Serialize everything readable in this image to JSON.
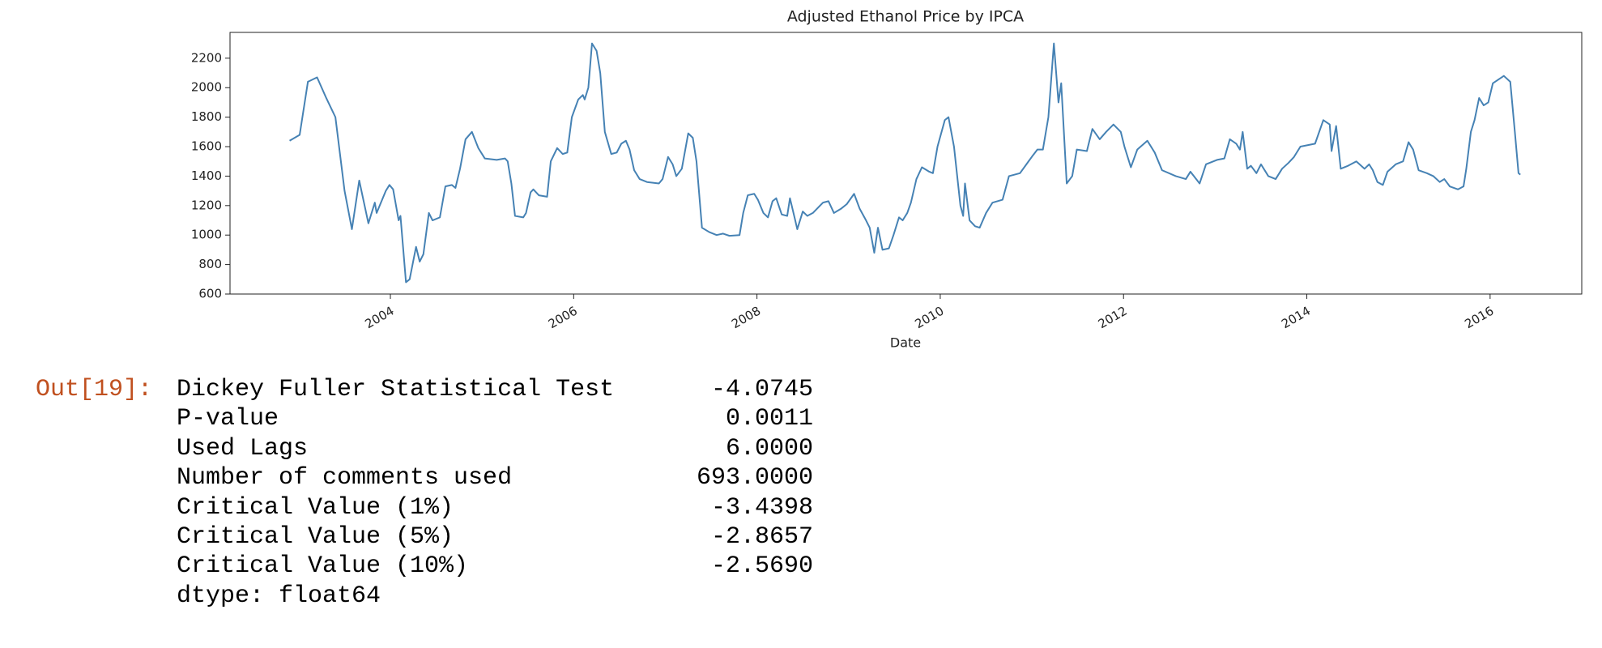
{
  "chart_data": {
    "type": "line",
    "title": "Adjusted Ethanol Price by IPCA",
    "xlabel": "Date",
    "color": "#4682b4",
    "x": [
      2002.9,
      2003.01,
      2003.1,
      2003.2,
      2003.3,
      2003.4,
      2003.5,
      2003.58,
      2003.66,
      2003.76,
      2003.83,
      2003.85,
      2003.95,
      2003.99,
      2004.03,
      2004.09,
      2004.11,
      2004.17,
      2004.21,
      2004.28,
      2004.32,
      2004.36,
      2004.42,
      2004.46,
      2004.54,
      2004.6,
      2004.67,
      2004.71,
      2004.76,
      2004.82,
      2004.89,
      2004.96,
      2005.03,
      2005.16,
      2005.25,
      2005.28,
      2005.32,
      2005.36,
      2005.45,
      2005.48,
      2005.53,
      2005.56,
      2005.62,
      2005.71,
      2005.75,
      2005.82,
      2005.88,
      2005.93,
      2005.98,
      2006.05,
      2006.1,
      2006.12,
      2006.16,
      2006.2,
      2006.25,
      2006.29,
      2006.34,
      2006.41,
      2006.47,
      2006.52,
      2006.57,
      2006.61,
      2006.66,
      2006.72,
      2006.8,
      2006.93,
      2006.97,
      2007.03,
      2007.08,
      2007.12,
      2007.18,
      2007.25,
      2007.3,
      2007.34,
      2007.4,
      2007.48,
      2007.56,
      2007.63,
      2007.7,
      2007.81,
      2007.85,
      2007.9,
      2007.97,
      2008.01,
      2008.07,
      2008.12,
      2008.17,
      2008.21,
      2008.27,
      2008.33,
      2008.36,
      2008.41,
      2008.44,
      2008.5,
      2008.55,
      2008.61,
      2008.72,
      2008.78,
      2008.84,
      2008.92,
      2008.98,
      2009.06,
      2009.12,
      2009.19,
      2009.23,
      2009.28,
      2009.32,
      2009.37,
      2009.44,
      2009.49,
      2009.55,
      2009.59,
      2009.64,
      2009.68,
      2009.74,
      2009.8,
      2009.88,
      2009.92,
      2009.97,
      2010.05,
      2010.09,
      2010.15,
      2010.22,
      2010.25,
      2010.27,
      2010.32,
      2010.38,
      2010.43,
      2010.5,
      2010.57,
      2010.68,
      2010.75,
      2010.87,
      2010.94,
      2011.01,
      2011.06,
      2011.12,
      2011.18,
      2011.24,
      2011.29,
      2011.32,
      2011.38,
      2011.44,
      2011.49,
      2011.6,
      2011.66,
      2011.74,
      2011.81,
      2011.89,
      2011.97,
      2012.01,
      2012.08,
      2012.15,
      2012.26,
      2012.34,
      2012.42,
      2012.57,
      2012.68,
      2012.73,
      2012.83,
      2012.9,
      2013.02,
      2013.1,
      2013.16,
      2013.23,
      2013.27,
      2013.3,
      2013.35,
      2013.39,
      2013.45,
      2013.5,
      2013.58,
      2013.66,
      2013.73,
      2013.8,
      2013.86,
      2013.93,
      2014.09,
      2014.18,
      2014.25,
      2014.27,
      2014.32,
      2014.37,
      2014.45,
      2014.54,
      2014.63,
      2014.68,
      2014.72,
      2014.77,
      2014.83,
      2014.88,
      2014.97,
      2015.05,
      2015.11,
      2015.16,
      2015.22,
      2015.31,
      2015.38,
      2015.45,
      2015.5,
      2015.56,
      2015.65,
      2015.71,
      2015.74,
      2015.79,
      2015.83,
      2015.88,
      2015.93,
      2015.98,
      2016.03,
      2016.15,
      2016.22,
      2016.27,
      2016.31,
      2016.33
    ],
    "values": [
      1640,
      1680,
      2040,
      2070,
      1930,
      1800,
      1300,
      1040,
      1370,
      1080,
      1220,
      1150,
      1300,
      1340,
      1310,
      1100,
      1130,
      680,
      700,
      920,
      820,
      870,
      1150,
      1100,
      1120,
      1330,
      1340,
      1320,
      1450,
      1650,
      1700,
      1590,
      1520,
      1510,
      1520,
      1500,
      1350,
      1130,
      1120,
      1150,
      1290,
      1310,
      1270,
      1260,
      1500,
      1590,
      1550,
      1560,
      1800,
      1920,
      1950,
      1920,
      2000,
      2300,
      2250,
      2100,
      1700,
      1550,
      1560,
      1620,
      1640,
      1580,
      1440,
      1380,
      1360,
      1350,
      1380,
      1530,
      1480,
      1400,
      1450,
      1690,
      1660,
      1500,
      1050,
      1020,
      1000,
      1010,
      995,
      1000,
      1150,
      1270,
      1280,
      1240,
      1150,
      1120,
      1230,
      1250,
      1140,
      1130,
      1250,
      1120,
      1040,
      1160,
      1130,
      1150,
      1220,
      1230,
      1150,
      1180,
      1210,
      1280,
      1180,
      1100,
      1050,
      880,
      1050,
      900,
      910,
      1000,
      1120,
      1100,
      1150,
      1220,
      1380,
      1460,
      1430,
      1420,
      1600,
      1780,
      1800,
      1600,
      1200,
      1130,
      1350,
      1100,
      1060,
      1050,
      1150,
      1220,
      1240,
      1400,
      1420,
      1480,
      1540,
      1580,
      1580,
      1800,
      2300,
      1900,
      2030,
      1350,
      1400,
      1580,
      1570,
      1720,
      1650,
      1700,
      1750,
      1700,
      1600,
      1460,
      1580,
      1640,
      1560,
      1440,
      1400,
      1380,
      1430,
      1350,
      1480,
      1510,
      1520,
      1650,
      1620,
      1580,
      1700,
      1450,
      1470,
      1420,
      1480,
      1400,
      1380,
      1450,
      1490,
      1530,
      1600,
      1620,
      1780,
      1750,
      1570,
      1740,
      1450,
      1470,
      1500,
      1450,
      1480,
      1440,
      1360,
      1340,
      1430,
      1480,
      1500,
      1630,
      1580,
      1440,
      1420,
      1400,
      1360,
      1380,
      1330,
      1310,
      1330,
      1450,
      1700,
      1780,
      1930,
      1880,
      1900,
      2030,
      2080,
      2040,
      1700,
      1420,
      1410
    ],
    "xlim": [
      2002.25,
      2017.0
    ],
    "xticks": [
      2004,
      2006,
      2008,
      2010,
      2012,
      2014,
      2016
    ],
    "ylim": [
      600,
      2375
    ],
    "yticks": [
      600,
      800,
      1000,
      1200,
      1400,
      1600,
      1800,
      2000,
      2200
    ]
  },
  "output": {
    "prompt": "Out[19]:",
    "rows": [
      [
        "Dickey Fuller Statistical Test",
        "-4.0745"
      ],
      [
        "P-value",
        "0.0011"
      ],
      [
        "Used Lags",
        "6.0000"
      ],
      [
        "Number of comments used",
        "693.0000"
      ],
      [
        "Critical Value (1%)",
        "-3.4398"
      ],
      [
        "Critical Value (5%)",
        "-2.8657"
      ],
      [
        "Critical Value (10%)",
        "-2.5690"
      ]
    ],
    "footer": "dtype: float64"
  }
}
